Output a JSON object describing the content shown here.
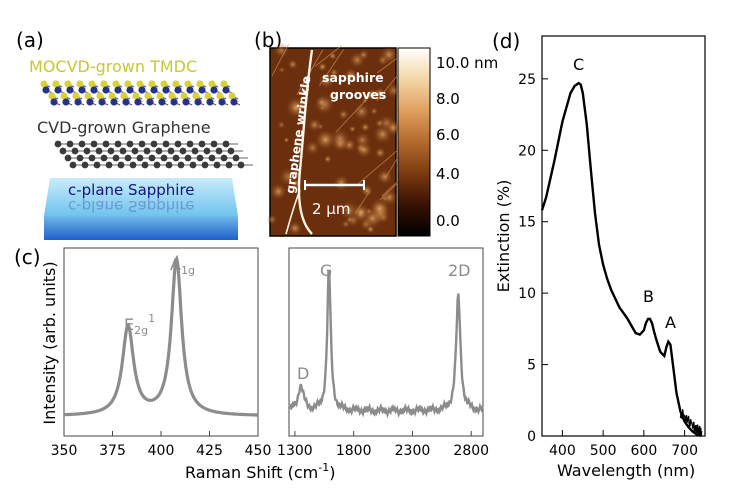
{
  "panel_labels": {
    "a": "(a)",
    "b": "(b)",
    "c": "(c)",
    "d": "(d)"
  },
  "panel_a": {
    "layer_top": "MOCVD-grown TMDC",
    "layer_middle": "CVD-grown Graphene",
    "layer_bottom": "c-plane Sapphire",
    "colors": {
      "tmdc_text": "#c8c832",
      "sapphire_text": "#14147a",
      "sapphire_fill": "#8ccff0",
      "sapphire_edge": "#1f5fc8"
    }
  },
  "panel_b": {
    "annotation_wrinkle": "graphene wrinkle",
    "annotation_grooves_line1": "sapphire",
    "annotation_grooves_line2": "grooves",
    "scalebar_label": "2 μm",
    "colorbar_ticks": [
      "10.0 nm",
      "8.0",
      "6.0",
      "4.0",
      "0.0"
    ],
    "colormap": [
      "#000000",
      "#3a1204",
      "#7a3a10",
      "#b36a2c",
      "#e0a060",
      "#f4d8a8",
      "#ffffff"
    ]
  },
  "panel_c": {
    "ylabel": "Intensity (arb. units)",
    "xlabel": "Raman Shift (cm",
    "xlabel_sup": "-1",
    "xlabel_end": ")",
    "line_color": "#8c8c8c",
    "left_peaks": {
      "e2g_base": "E",
      "e2g_sub": "2g",
      "e2g_sup": "1",
      "a1g_base": "A",
      "a1g_sub": "1g"
    },
    "right_peaks": {
      "d": "D",
      "g": "G",
      "twod": "2D"
    }
  },
  "chart_data": [
    {
      "type": "line",
      "id": "raman-tmdc",
      "xlim": [
        350,
        450
      ],
      "xticks": [
        "350",
        "375",
        "400",
        "425",
        "450"
      ],
      "peaks": [
        {
          "label": "E2g1",
          "position": 383,
          "height": 0.5
        },
        {
          "label": "A1g",
          "position": 408,
          "height": 0.88
        }
      ],
      "baseline": 0.05
    },
    {
      "type": "line",
      "id": "raman-graphene",
      "xlim": [
        1250,
        2900
      ],
      "xticks": [
        "1300",
        "1800",
        "2300",
        "2800"
      ],
      "peaks": [
        {
          "label": "D",
          "position": 1350,
          "height": 0.14
        },
        {
          "label": "G",
          "position": 1590,
          "height": 0.8
        },
        {
          "label": "2D",
          "position": 2690,
          "height": 0.65
        }
      ],
      "baseline": 0.08
    },
    {
      "type": "line",
      "id": "extinction",
      "xlabel": "Wavelength (nm)",
      "ylabel": "Extinction (%)",
      "xlim": [
        350,
        750
      ],
      "ylim": [
        0,
        28
      ],
      "xticks": [
        "400",
        "500",
        "600",
        "700"
      ],
      "yticks": [
        "0",
        "5",
        "10",
        "15",
        "20",
        "25"
      ],
      "annotations": [
        {
          "label": "C",
          "x": 440,
          "y": 24.7
        },
        {
          "label": "B",
          "x": 615,
          "y": 8.2
        },
        {
          "label": "A",
          "x": 662,
          "y": 6.6
        }
      ],
      "x": [
        350,
        360,
        380,
        400,
        420,
        430,
        440,
        445,
        450,
        460,
        470,
        480,
        490,
        500,
        510,
        520,
        530,
        540,
        550,
        560,
        570,
        580,
        590,
        600,
        605,
        610,
        615,
        620,
        625,
        630,
        640,
        650,
        655,
        660,
        665,
        670,
        680,
        690,
        700,
        710,
        720,
        730,
        740
      ],
      "y": [
        15.8,
        16.7,
        19.2,
        22.0,
        24.0,
        24.5,
        24.7,
        24.6,
        24.0,
        21.8,
        18.6,
        15.6,
        13.4,
        12.0,
        11.0,
        10.2,
        9.6,
        9.0,
        8.6,
        8.2,
        7.7,
        7.2,
        7.1,
        7.4,
        7.9,
        8.2,
        8.2,
        7.9,
        7.3,
        6.8,
        5.9,
        5.6,
        6.2,
        6.6,
        6.4,
        5.3,
        3.0,
        1.7,
        1.0,
        0.6,
        0.3,
        0.1,
        0.0
      ]
    }
  ]
}
